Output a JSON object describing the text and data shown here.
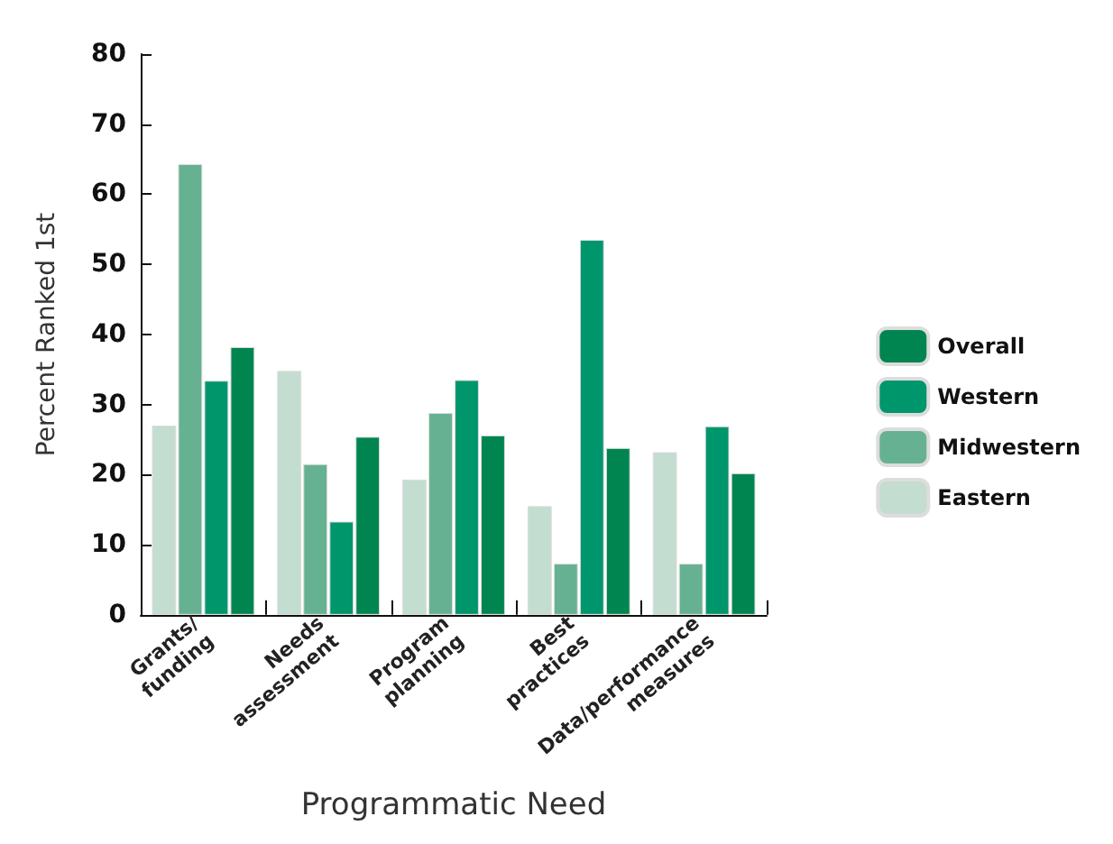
{
  "chart_data": {
    "type": "bar",
    "xlabel": "Programmatic Need",
    "ylabel": "Percent Ranked 1st",
    "categories": [
      "Grants/\nfunding",
      "Needs\nassessment",
      "Program\nplanning",
      "Best\npractices",
      "Data/performance\nmeasures"
    ],
    "series": [
      {
        "name": "Eastern",
        "color": "#c3ddd0",
        "values": [
          27.0,
          34.8,
          19.3,
          15.5,
          23.2
        ]
      },
      {
        "name": "Midwestern",
        "color": "#66b192",
        "values": [
          64.3,
          21.5,
          28.8,
          7.3,
          7.3
        ]
      },
      {
        "name": "Western",
        "color": "#00966c",
        "values": [
          33.4,
          13.3,
          33.5,
          53.5,
          26.9
        ]
      },
      {
        "name": "Overall",
        "color": "#008550",
        "values": [
          38.2,
          25.4,
          25.6,
          23.8,
          20.2
        ]
      }
    ],
    "ylim": [
      0,
      80
    ],
    "yticks": [
      0,
      10,
      20,
      30,
      40,
      50,
      60,
      70,
      80
    ],
    "grid": false,
    "legend": "right"
  }
}
